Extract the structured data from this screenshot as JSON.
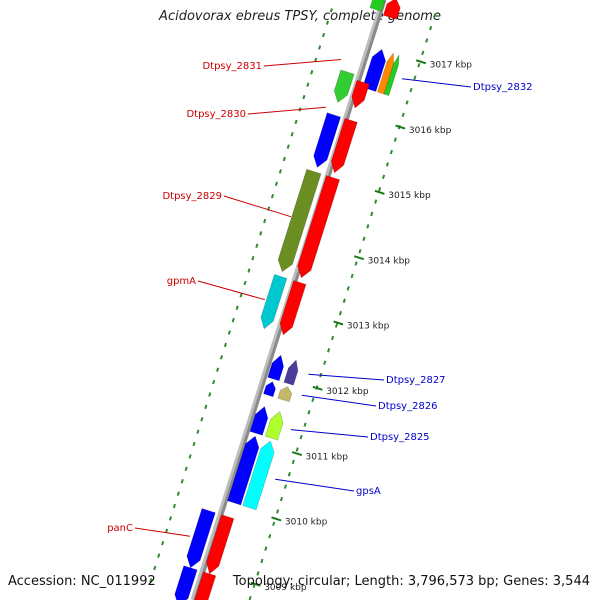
{
  "title": "Acidovorax ebreus TPSY, complete genome",
  "footer": {
    "accession": "Accession: NC_011992",
    "stats": "Topology: circular; Length: 3,796,573 bp; Genes: 3,544"
  },
  "ticks": [
    {
      "label": "3017 kbp",
      "kbp": 3017
    },
    {
      "label": "3016 kbp",
      "kbp": 3016
    },
    {
      "label": "3015 kbp",
      "kbp": 3015
    },
    {
      "label": "3014 kbp",
      "kbp": 3014
    },
    {
      "label": "3013 kbp",
      "kbp": 3013
    },
    {
      "label": "3012 kbp",
      "kbp": 3012
    },
    {
      "label": "3011 kbp",
      "kbp": 3011
    },
    {
      "label": "3010 kbp",
      "kbp": 3010
    },
    {
      "label": "3009 kbp",
      "kbp": 3009
    }
  ],
  "gene_labels": [
    {
      "name": "Dtpsy_2831",
      "strand": "reverse"
    },
    {
      "name": "Dtpsy_2830",
      "strand": "reverse"
    },
    {
      "name": "Dtpsy_2829",
      "strand": "reverse"
    },
    {
      "name": "gpmA",
      "strand": "reverse"
    },
    {
      "name": "panC",
      "strand": "reverse"
    },
    {
      "name": "Dtpsy_2832",
      "strand": "forward"
    },
    {
      "name": "Dtpsy_2827",
      "strand": "forward"
    },
    {
      "name": "Dtpsy_2826",
      "strand": "forward"
    },
    {
      "name": "Dtpsy_2825",
      "strand": "forward"
    },
    {
      "name": "gpsA",
      "strand": "forward"
    }
  ],
  "colors": {
    "reverse_label": "#cc0000",
    "forward_label": "#0000cc",
    "backbone": "#8a8a8a",
    "dots": "#2e8b2e",
    "cds_forward": "#0000ff",
    "cds_reverse": "#ff0000"
  }
}
